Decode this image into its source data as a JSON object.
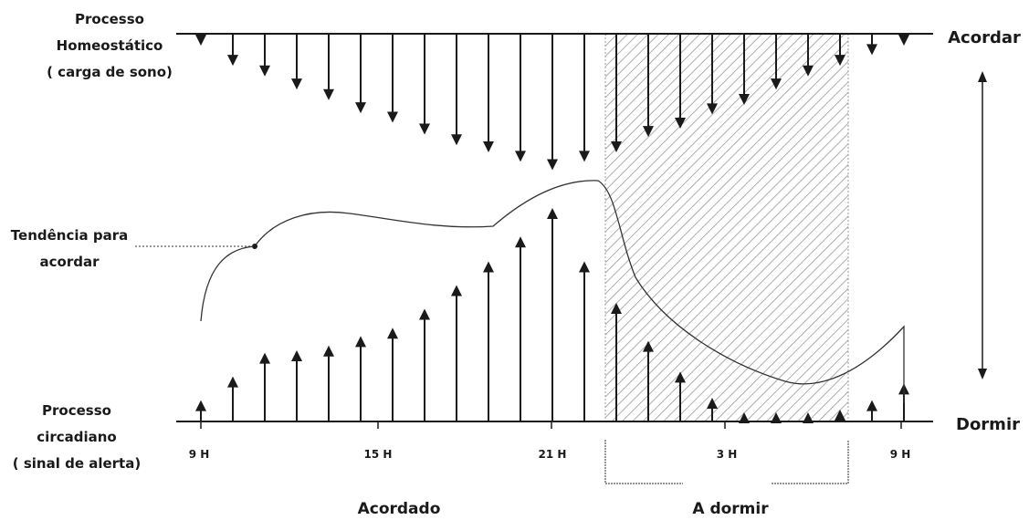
{
  "labels": {
    "homeostatic": [
      "Processo",
      "Homeostático",
      "( carga de sono)"
    ],
    "circadian": [
      "Processo",
      "circadiano",
      "( sinal de alerta)"
    ],
    "tendency": [
      "Tendência para",
      "acordar"
    ],
    "wake_axis": "Acordar",
    "sleep_axis": "Dormir",
    "awake_period": "Acordado",
    "sleep_period": "A dormir"
  },
  "time_ticks": [
    "9 H",
    "15 H",
    "21 H",
    "3 H",
    "9 H"
  ],
  "colors": {
    "ink": "#1a1a1a",
    "hatch": "#999999"
  },
  "chart_data": {
    "type": "line",
    "title": "",
    "series": [
      {
        "name": "Processo Homeostático ( carga de sono)",
        "values": [
          0.1,
          0.27,
          0.36,
          0.47,
          0.56,
          0.67,
          0.75,
          0.85,
          0.94,
          1.0,
          1.08,
          1.15,
          1.08,
          1.0,
          0.87,
          0.8,
          0.68,
          0.6,
          0.47,
          0.36,
          0.27,
          0.18,
          0.1
        ]
      },
      {
        "name": "Processo circadiano ( sinal de alerta)",
        "values": [
          0.18,
          0.38,
          0.58,
          0.6,
          0.64,
          0.72,
          0.79,
          0.95,
          1.15,
          1.35,
          1.56,
          1.8,
          1.35,
          1.0,
          0.68,
          0.42,
          0.2,
          0.06,
          0.01,
          0.01,
          0.1,
          0.18,
          0.32
        ]
      }
    ]
  }
}
